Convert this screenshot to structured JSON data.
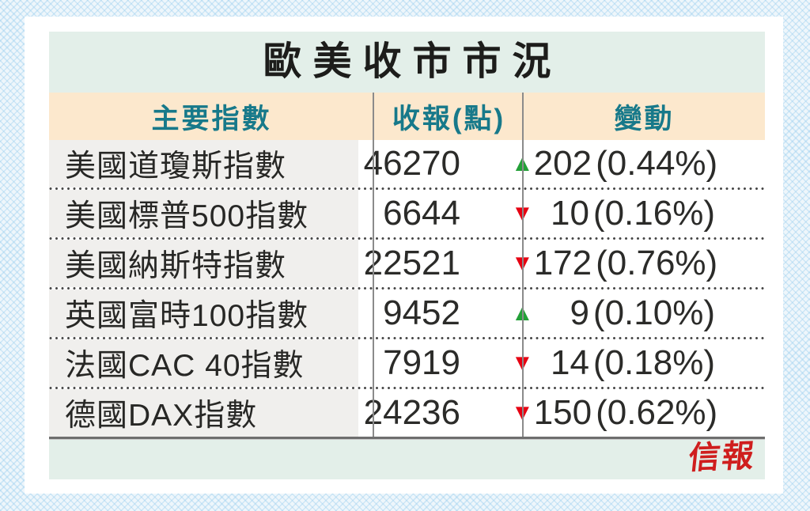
{
  "title": "歐美收市市況",
  "table": {
    "columns": [
      {
        "label": "主要指數"
      },
      {
        "label": "收報(點)"
      },
      {
        "label": "變動"
      }
    ],
    "rows": [
      {
        "name": "美國道瓊斯指數",
        "close": "46270",
        "change": {
          "direction": "up",
          "arrow": "▲",
          "value": "202",
          "percent": "(0.44%)"
        }
      },
      {
        "name": "美國標普500指數",
        "close": "6644",
        "change": {
          "direction": "down",
          "arrow": "▼",
          "value": "10",
          "percent": "(0.16%)"
        }
      },
      {
        "name": "美國納斯特指數",
        "close": "22521",
        "change": {
          "direction": "down",
          "arrow": "▼",
          "value": "172",
          "percent": "(0.76%)"
        }
      },
      {
        "name": "英國富時100指數",
        "close": "9452",
        "change": {
          "direction": "up",
          "arrow": "▲",
          "value": "9",
          "percent": "(0.10%)"
        }
      },
      {
        "name": "法國CAC 40指數",
        "close": "7919",
        "change": {
          "direction": "down",
          "arrow": "▼",
          "value": "14",
          "percent": "(0.18%)"
        }
      },
      {
        "name": "德國DAX指數",
        "close": "24236",
        "change": {
          "direction": "down",
          "arrow": "▼",
          "value": "150",
          "percent": "(0.62%)"
        }
      }
    ]
  },
  "footer": {
    "brand": "信報"
  },
  "colors": {
    "up_green": "#23a038",
    "down_red": "#e60012",
    "header_teal": "#17798a",
    "brand_red": "#cf1e1e",
    "title_bg": "#e3efe9",
    "header_bg": "#fce8cd",
    "first_col_bg": "#f0efed",
    "page_bg": "#eef6fb"
  },
  "chart_data": {
    "type": "table",
    "title": "歐美收市市況",
    "columns": [
      "主要指數",
      "收報(點)",
      "變動"
    ],
    "rows": [
      [
        "美國道瓊斯指數",
        46270,
        "▲202 (0.44%)"
      ],
      [
        "美國標普500指數",
        6644,
        "▼10 (0.16%)"
      ],
      [
        "美國納斯特指數",
        22521,
        "▼172 (0.76%)"
      ],
      [
        "英國富時100指數",
        9452,
        "▲9 (0.10%)"
      ],
      [
        "法國CAC 40指數",
        7919,
        "▼14 (0.18%)"
      ],
      [
        "德國DAX指數",
        24236,
        "▼150 (0.62%)"
      ]
    ]
  }
}
